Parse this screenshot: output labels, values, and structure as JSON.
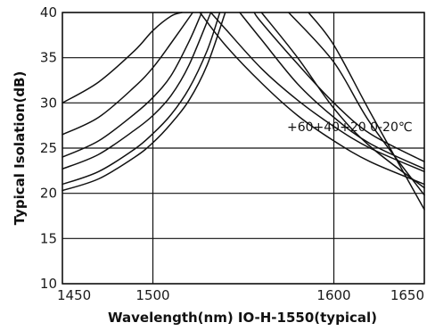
{
  "chart_data": {
    "type": "line",
    "title": "",
    "xlabel": "Wavelength(nm) IO-H-1550(typical)",
    "ylabel": "Typical Isolation(dB)",
    "xlim": [
      1450,
      1650
    ],
    "ylim": [
      10,
      40
    ],
    "x_ticks": [
      "1450",
      "1500",
      "1600",
      "1650"
    ],
    "y_ticks": [
      "10",
      "15",
      "20",
      "25",
      "30",
      "35",
      "40"
    ],
    "grid": true,
    "annotation": "+60+40+20  0-20℃",
    "series": [
      {
        "x": [
          1450,
          1470,
          1490,
          1500,
          1510,
          1516
        ],
        "y": [
          30,
          32.3,
          35.8,
          38,
          39.6,
          40
        ]
      },
      {
        "x": [
          1450,
          1470,
          1490,
          1500,
          1510,
          1522
        ],
        "y": [
          26.5,
          28.4,
          31.8,
          33.9,
          36.6,
          40
        ]
      },
      {
        "x": [
          1450,
          1470,
          1490,
          1500,
          1510,
          1520,
          1527
        ],
        "y": [
          24,
          25.8,
          28.8,
          30.6,
          33.0,
          36.8,
          40
        ]
      },
      {
        "x": [
          1450,
          1470,
          1490,
          1500,
          1510,
          1520,
          1532
        ],
        "y": [
          22.7,
          24.3,
          27.0,
          28.6,
          30.8,
          34.2,
          40
        ]
      },
      {
        "x": [
          1450,
          1470,
          1490,
          1500,
          1510,
          1520,
          1530,
          1537
        ],
        "y": [
          21,
          22.4,
          24.9,
          26.6,
          28.7,
          31.6,
          35.8,
          40
        ]
      },
      {
        "x": [
          1450,
          1470,
          1490,
          1500,
          1510,
          1520,
          1530,
          1540
        ],
        "y": [
          20.3,
          21.6,
          24.0,
          25.6,
          27.7,
          30.3,
          34.2,
          40
        ]
      },
      {
        "x": [
          1526,
          1540,
          1560,
          1580,
          1600,
          1620,
          1650
        ],
        "y": [
          40,
          36.4,
          32.2,
          28.6,
          25.8,
          23.5,
          21.0
        ]
      },
      {
        "x": [
          1532,
          1540,
          1560,
          1580,
          1600,
          1620,
          1650
        ],
        "y": [
          40,
          38.2,
          33.8,
          30.3,
          27.4,
          25.0,
          22.4
        ]
      },
      {
        "x": [
          1548,
          1560,
          1580,
          1600,
          1620,
          1650
        ],
        "y": [
          40,
          37.0,
          32.1,
          28.4,
          25.5,
          22.7
        ]
      },
      {
        "x": [
          1556,
          1560,
          1580,
          1600,
          1620,
          1650
        ],
        "y": [
          40,
          38.9,
          34.3,
          30.0,
          26.6,
          23.5
        ]
      },
      {
        "x": [
          1560,
          1580,
          1600,
          1620,
          1650
        ],
        "y": [
          40,
          35.0,
          29.4,
          25.2,
          20.6
        ]
      },
      {
        "x": [
          1575,
          1600,
          1620,
          1650
        ],
        "y": [
          40,
          34.5,
          27.8,
          19.8
        ]
      },
      {
        "x": [
          1586,
          1600,
          1620,
          1650
        ],
        "y": [
          40,
          36.4,
          29.0,
          18.2
        ]
      }
    ]
  }
}
